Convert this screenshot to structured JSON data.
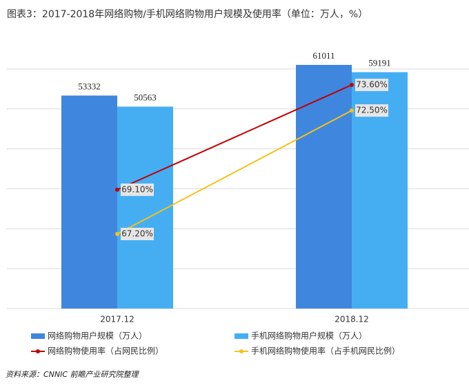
{
  "chart_data": {
    "type": "bar-line",
    "title": "图表3：2017-2018年网络购物/手机网络购物用户规模及使用率（单位：万人，%）",
    "categories": [
      "2017.12",
      "2018.12"
    ],
    "ylim": [
      0,
      70000
    ],
    "yticks": [
      0,
      10000,
      20000,
      30000,
      40000,
      50000,
      60000
    ],
    "grid": true,
    "y2lim": [
      64,
      76
    ],
    "series": [
      {
        "name": "网络购物用户规模（万人）",
        "type": "bar",
        "color": "#3f86df",
        "values": [
          53332,
          61011
        ]
      },
      {
        "name": "手机网络购物用户规模（万人）",
        "type": "bar",
        "color": "#45aef3",
        "values": [
          50563,
          59191
        ]
      },
      {
        "name": "网络购物使用率（占网民比例）",
        "type": "line",
        "axis": "y2",
        "color": "#c00000",
        "values": [
          69.1,
          73.6
        ],
        "value_labels": [
          "69.10%",
          "73.60%"
        ]
      },
      {
        "name": "手机网络购物使用率（占手机网民比例）",
        "type": "line",
        "axis": "y2",
        "color": "#f5c218",
        "values": [
          67.2,
          72.5
        ],
        "value_labels": [
          "67.20%",
          "72.50%"
        ]
      }
    ],
    "source": "资料来源：CNNIC  前瞻产业研究院整理"
  }
}
